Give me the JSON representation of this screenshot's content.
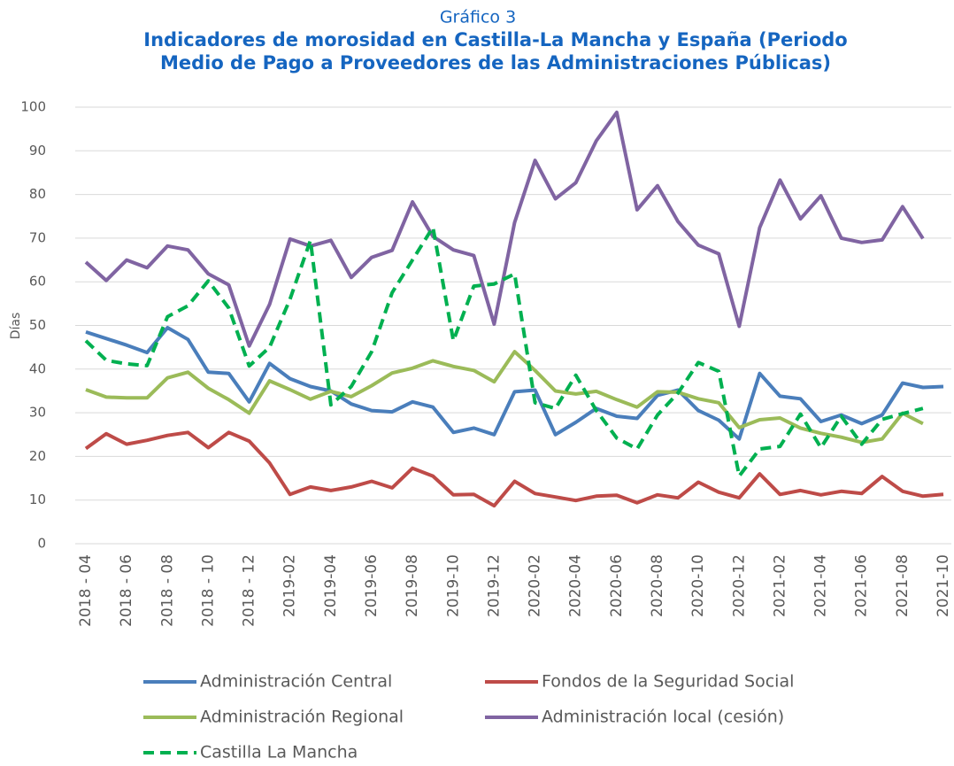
{
  "chart_data": {
    "type": "line",
    "subtitle": "Gráfico 3",
    "title_lines": [
      "Indicadores de morosidad en Castilla-La Mancha y España (Periodo",
      "Medio de Pago a Proveedores de las Administraciones Públicas)"
    ],
    "y_label": "Días",
    "categories": [
      "2018 - 04",
      null,
      "2018 - 06",
      null,
      "2018 - 08",
      null,
      "2018 - 10",
      null,
      "2018 - 12",
      null,
      "2019-02",
      null,
      "2019-04",
      null,
      "2019-06",
      null,
      "2019-08",
      null,
      "2019-10",
      null,
      "2019-12",
      null,
      "2020-02",
      null,
      "2020-04",
      null,
      "2020-06",
      null,
      "2020-08",
      null,
      "2020-10",
      null,
      "2020-12",
      null,
      "2021-02",
      null,
      "2021-04",
      null,
      "2021-06",
      null,
      "2021-08",
      null,
      "2021-10"
    ],
    "ylim": [
      0,
      100
    ],
    "yticks": [
      0,
      10,
      20,
      30,
      40,
      50,
      60,
      70,
      80,
      90,
      100
    ],
    "grid": true,
    "series": [
      {
        "name": "Administración Central",
        "color": "#4a7ebb",
        "dashed": false,
        "values": [
          48.5,
          47,
          45.5,
          43.8,
          49.5,
          46.8,
          39.3,
          39,
          32.5,
          41.3,
          37.8,
          36,
          35,
          32,
          30.5,
          30.2,
          32.5,
          31.3,
          25.5,
          26.5,
          25,
          34.8,
          35.2,
          25,
          27.8,
          31,
          29.2,
          28.7,
          34,
          35.2,
          30.5,
          28.3,
          24,
          39,
          33.8,
          33.2,
          28,
          29.5,
          27.5,
          29.5,
          36.8,
          35.8,
          36
        ]
      },
      {
        "name": "Fondos de la Seguridad Social",
        "color": "#be4b48",
        "dashed": false,
        "values": [
          21.8,
          25.2,
          22.8,
          23.7,
          24.8,
          25.5,
          22,
          25.5,
          23.5,
          18.5,
          11.3,
          13,
          12.2,
          13,
          14.3,
          12.8,
          17.3,
          15.5,
          11.2,
          11.3,
          8.7,
          14.3,
          11.5,
          10.7,
          9.9,
          10.9,
          11.1,
          9.4,
          11.2,
          10.5,
          14.1,
          11.8,
          10.5,
          16,
          11.3,
          12.2,
          11.2,
          12,
          11.5,
          15.4,
          12,
          10.9,
          11.3
        ]
      },
      {
        "name": "Administración Regional",
        "color": "#9bbb59",
        "dashed": false,
        "values": [
          35.3,
          33.6,
          33.4,
          33.4,
          38,
          39.3,
          35.6,
          33,
          29.9,
          37.3,
          35.3,
          33.1,
          34.9,
          33.7,
          36.2,
          39.1,
          40.2,
          41.9,
          40.6,
          39.7,
          37.1,
          44,
          39.7,
          35,
          34.3,
          34.9,
          33,
          31.3,
          34.8,
          34.7,
          33.2,
          32.3,
          26.6,
          28.4,
          28.8,
          26.5,
          25.3,
          24.4,
          23.2,
          24,
          29.9,
          27.5,
          null
        ]
      },
      {
        "name": "Administración local (cesión)",
        "color": "#8064a2",
        "dashed": false,
        "values": [
          64.5,
          60.3,
          65,
          63.2,
          68.2,
          67.3,
          61.8,
          59.3,
          45.3,
          54.8,
          69.8,
          68.2,
          69.5,
          61,
          65.6,
          67.2,
          78.3,
          70.4,
          67.3,
          66,
          50.3,
          73.6,
          87.8,
          79,
          82.7,
          92.3,
          98.8,
          76.5,
          82,
          73.8,
          68.4,
          66.4,
          49.8,
          72.4,
          83.3,
          74.4,
          79.7,
          70,
          69,
          69.6,
          77.2,
          69.9,
          null
        ]
      },
      {
        "name": "Castilla La Mancha",
        "color": "#00b050",
        "dashed": true,
        "values": [
          46.5,
          42,
          41.2,
          40.8,
          52,
          54.5,
          60.2,
          54,
          40.7,
          45,
          56,
          69.5,
          31.8,
          36,
          44,
          57.5,
          65,
          72.5,
          46.5,
          59,
          59.5,
          61.8,
          32.3,
          31,
          38.6,
          30.5,
          24.2,
          21.7,
          29.5,
          34.5,
          41.5,
          39.5,
          15.5,
          21.7,
          22.3,
          29.7,
          22,
          29.2,
          22.8,
          28.5,
          29.8,
          31,
          null
        ]
      }
    ]
  }
}
